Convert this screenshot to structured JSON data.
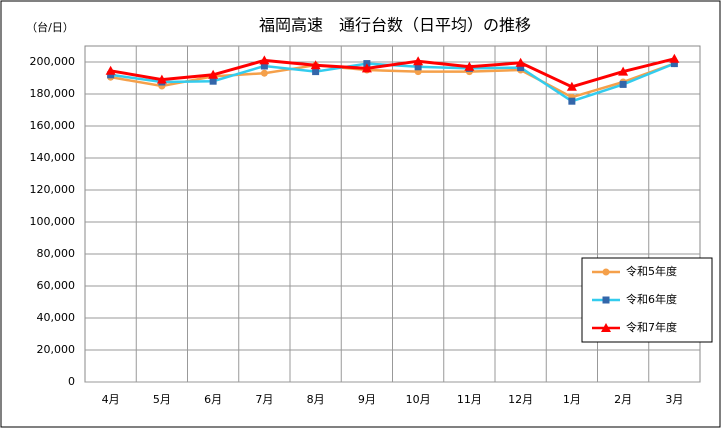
{
  "chart_data": {
    "type": "line",
    "title": "福岡高速　通行台数（日平均）の推移",
    "y_unit": "（台/日）",
    "categories": [
      "4月",
      "5月",
      "6月",
      "7月",
      "8月",
      "9月",
      "10月",
      "11月",
      "12月",
      "1月",
      "2月",
      "3月"
    ],
    "series": [
      {
        "name": "令和5年度",
        "color": "#f5a04a",
        "marker": "circle",
        "values": [
          190500,
          185000,
          191000,
          193000,
          198000,
          195000,
          194000,
          194000,
          195000,
          178000,
          187500,
          199000
        ]
      },
      {
        "name": "令和6年度",
        "color": "#33ccee",
        "marker": "square",
        "values": [
          192000,
          187500,
          188000,
          197500,
          194000,
          199000,
          197000,
          196000,
          196500,
          175500,
          186000,
          199000
        ]
      },
      {
        "name": "令和7年度",
        "color": "#ff0000",
        "marker": "triangle",
        "values": [
          194500,
          189000,
          192000,
          201000,
          198000,
          196000,
          200500,
          197000,
          199500,
          184500,
          194000,
          202000
        ]
      }
    ],
    "ylim": [
      0,
      210000
    ],
    "yticks": [
      0,
      {
        "value": 20000,
        "label": "20,000"
      },
      {
        "value": 40000,
        "label": "40,000"
      },
      {
        "value": 60000,
        "label": "60,000"
      },
      {
        "value": 80000,
        "label": "80,000"
      },
      {
        "value": 100000,
        "label": "100,000"
      },
      {
        "value": 120000,
        "label": "120,000"
      },
      {
        "value": 140000,
        "label": "140,000"
      },
      {
        "value": 160000,
        "label": "160,000"
      },
      {
        "value": 180000,
        "label": "180,000"
      },
      {
        "value": 200000,
        "label": "200,000"
      }
    ],
    "grid": true,
    "legend": "lower right"
  }
}
